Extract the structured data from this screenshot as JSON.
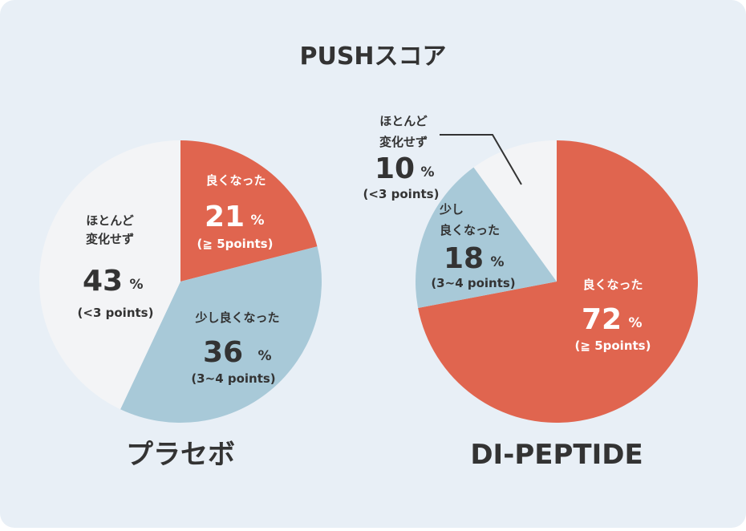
{
  "title": "PUSHスコア",
  "colors": {
    "improved": "#e0654f",
    "slightly_improved": "#a8c9d8",
    "unchanged": "#f3f4f6",
    "text_dark": "#333333",
    "text_light": "#ffffff"
  },
  "chart_data": [
    {
      "type": "pie",
      "title": "プラセボ",
      "unit": "%",
      "slices": [
        {
          "key": "improved",
          "label": "良くなった",
          "value": 21,
          "note": "(≧ 5points)"
        },
        {
          "key": "slightly_improved",
          "label": "少し良くなった",
          "value": 36,
          "note": "(3~4 points)"
        },
        {
          "key": "unchanged",
          "label": "ほとんど変化せず",
          "value": 43,
          "note": "(<3 points)"
        }
      ]
    },
    {
      "type": "pie",
      "title": "DI-PEPTIDE",
      "unit": "%",
      "slices": [
        {
          "key": "improved",
          "label": "良くなった",
          "value": 72,
          "note": "(≧ 5points)"
        },
        {
          "key": "slightly_improved",
          "label": "少し良くなった",
          "value": 18,
          "note": "(3~4 points)"
        },
        {
          "key": "unchanged",
          "label": "ほとんど変化せず",
          "value": 10,
          "note": "(<3 points)"
        }
      ]
    }
  ]
}
